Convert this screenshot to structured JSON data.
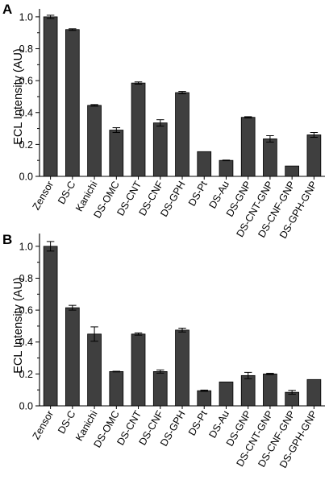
{
  "chart_data": [
    {
      "type": "bar",
      "panel": "A",
      "ylabel": "ECL Intensity (AU)",
      "ylim": [
        0,
        1.05
      ],
      "yticks": [
        "0.0",
        "0.2",
        "0.4",
        "0.6",
        "0.8",
        "1.0"
      ],
      "ytick_values": [
        0,
        0.2,
        0.4,
        0.6,
        0.8,
        1.0
      ],
      "categories": [
        "Zensor",
        "DS-C",
        "Kanichi",
        "DS-OMC",
        "DS-CNT",
        "DS-CNF",
        "DS-GPH",
        "DS-Pt",
        "DS-Au",
        "DS-GNP",
        "DS-CNT-GNP",
        "DS-CNF-GNP",
        "DS-GPH-GNP"
      ],
      "values": [
        1.0,
        0.92,
        0.445,
        0.29,
        0.585,
        0.335,
        0.525,
        0.155,
        0.1,
        0.37,
        0.235,
        0.065,
        0.26
      ],
      "errors": [
        0.01,
        0.005,
        0.005,
        0.015,
        0.007,
        0.02,
        0.007,
        0.0,
        0.002,
        0.004,
        0.02,
        0.0,
        0.015
      ],
      "grid": false
    },
    {
      "type": "bar",
      "panel": "B",
      "ylabel": "ECL Intensity (AU)",
      "ylim": [
        0,
        1.08
      ],
      "yticks": [
        "0.0",
        "0.2",
        "0.4",
        "0.6",
        "0.8",
        "1.0"
      ],
      "ytick_values": [
        0,
        0.2,
        0.4,
        0.6,
        0.8,
        1.0
      ],
      "categories": [
        "Zensor",
        "DS-C",
        "Kanichi",
        "DS-OMC",
        "DS-CNT",
        "DS-CNF",
        "DS-GPH",
        "DS-Pt",
        "DS-Au",
        "DS-GNP",
        "DS-CNT-GNP",
        "DS-CNF-GNP",
        "DS-GPH-GNP"
      ],
      "values": [
        1.0,
        0.615,
        0.45,
        0.215,
        0.45,
        0.215,
        0.475,
        0.095,
        0.15,
        0.19,
        0.2,
        0.085,
        0.165
      ],
      "errors": [
        0.03,
        0.015,
        0.045,
        0.002,
        0.007,
        0.01,
        0.012,
        0.004,
        0.0,
        0.02,
        0.004,
        0.012,
        0.0
      ],
      "grid": false
    }
  ],
  "colors": {
    "bar_fill": "#3f3f3f",
    "axis": "#000000"
  }
}
